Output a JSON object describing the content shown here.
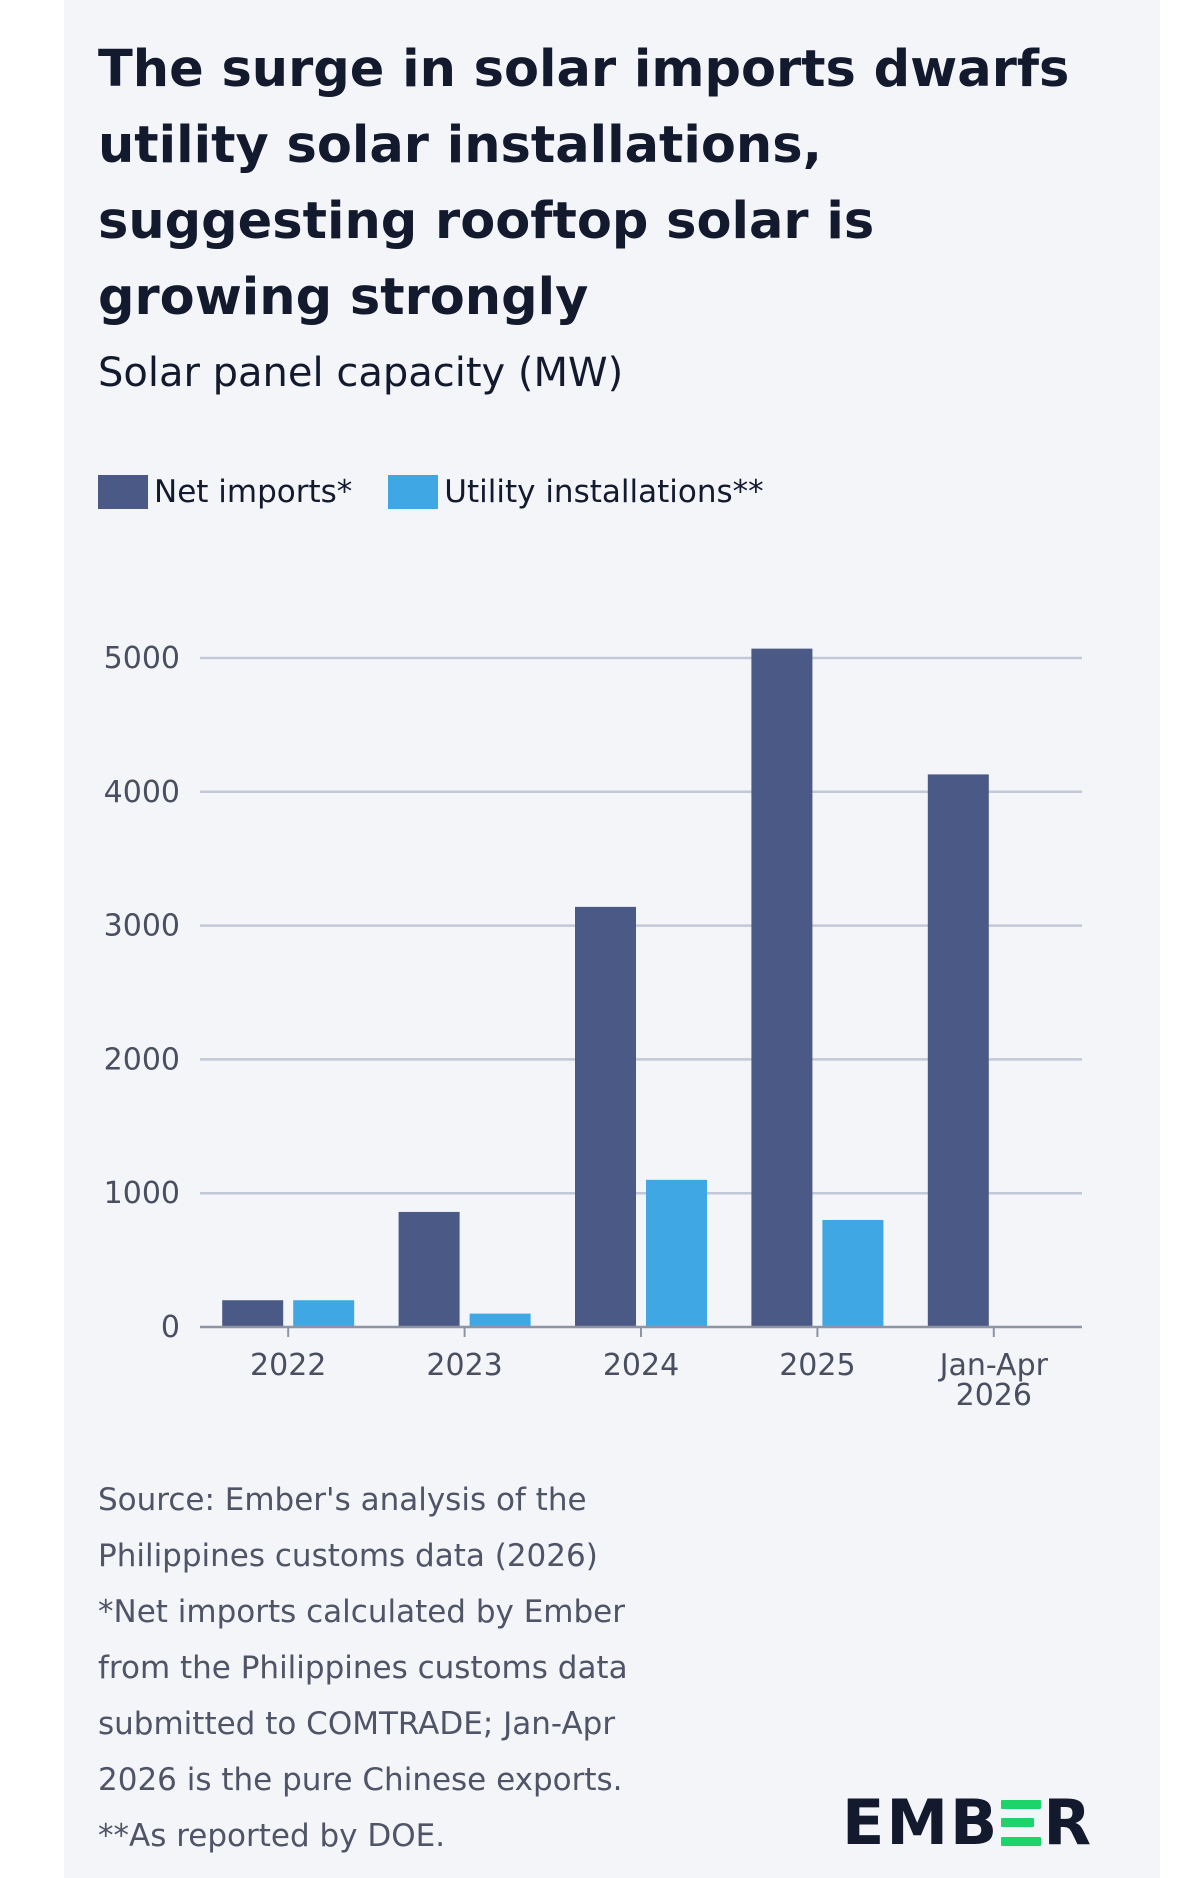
{
  "title_lines": [
    "The surge in solar imports dwarfs",
    "utility solar installations,",
    "suggesting rooftop solar is",
    "growing strongly"
  ],
  "subtitle": "Solar panel capacity (MW)",
  "legend": [
    {
      "label": "Net imports*",
      "color": "#4a5985"
    },
    {
      "label": "Utility installations**",
      "color": "#3fa8e4"
    }
  ],
  "chart_data": {
    "type": "bar",
    "categories": [
      "2022",
      "2023",
      "2024",
      "2025",
      "Jan-Apr 2026"
    ],
    "category_label_lines": [
      [
        "2022"
      ],
      [
        "2023"
      ],
      [
        "2024"
      ],
      [
        "2025"
      ],
      [
        "Jan-Apr",
        "2026"
      ]
    ],
    "series": [
      {
        "name": "Net imports*",
        "color": "#4a5985",
        "values": [
          200,
          860,
          3140,
          5070,
          4130
        ]
      },
      {
        "name": "Utility installations**",
        "color": "#3fa8e4",
        "values": [
          200,
          100,
          1100,
          800,
          null
        ]
      }
    ],
    "y_ticks": [
      0,
      1000,
      2000,
      3000,
      4000,
      5000
    ],
    "ylim": [
      0,
      5000
    ],
    "grid": true,
    "legend_position": "top-left"
  },
  "source_lines": [
    "Source: Ember's analysis of the",
    "Philippines customs data (2026)",
    "*Net imports calculated by Ember",
    "from the Philippines customs data",
    "submitted to COMTRADE; Jan-Apr",
    "2026 is the pure Chinese exports.",
    "**As reported by DOE."
  ],
  "logo": {
    "left": "EMB",
    "right": "R",
    "accent_color": "#1fd36b"
  }
}
